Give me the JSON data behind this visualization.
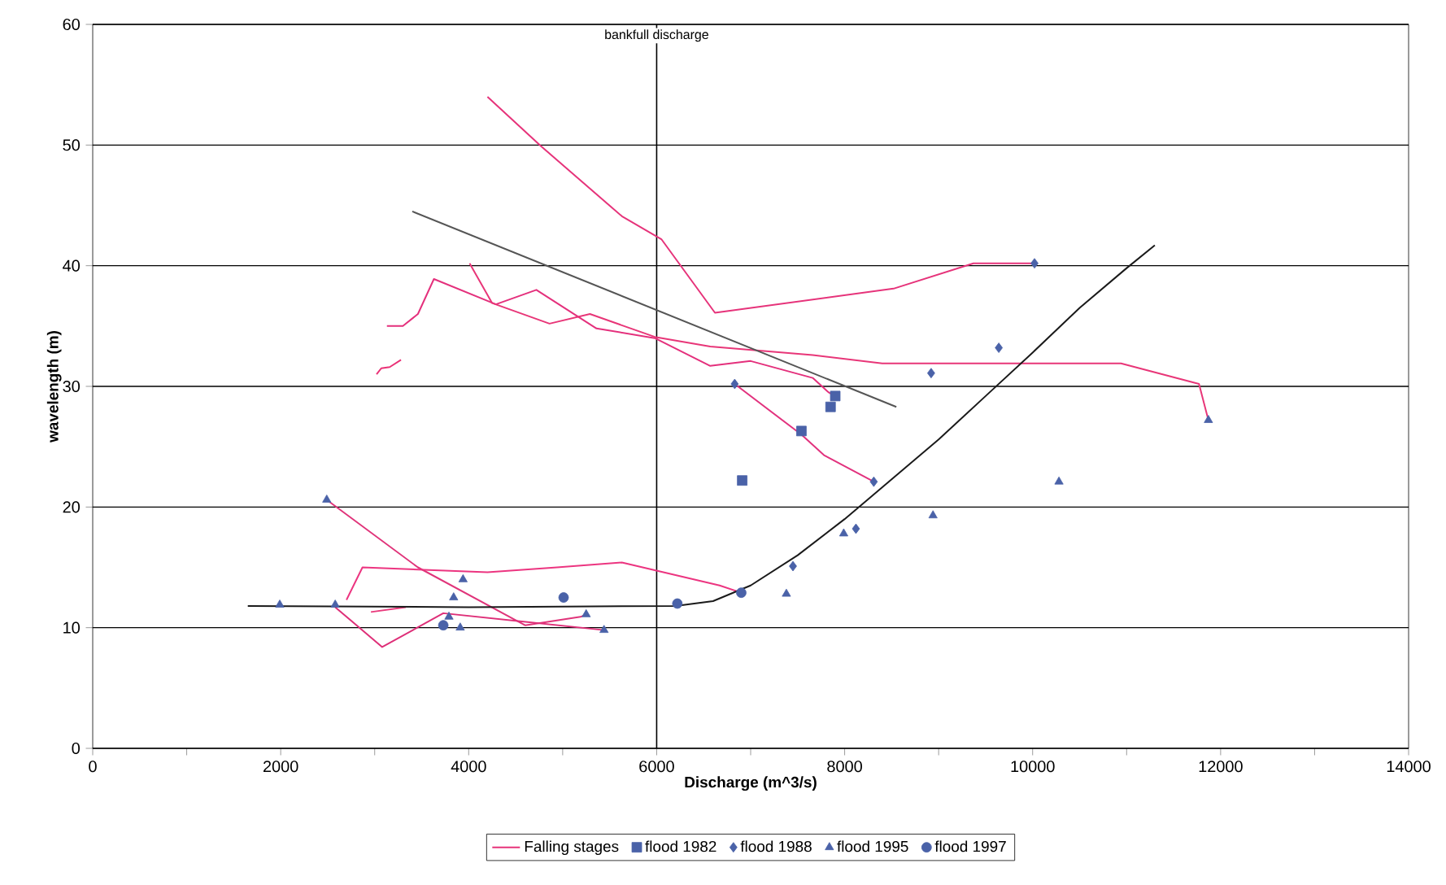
{
  "chart_data": {
    "type": "line",
    "xlabel": "Discharge (m^3/s)",
    "ylabel": "wavelength (m)",
    "xlim": [
      0,
      14000
    ],
    "ylim": [
      0,
      60
    ],
    "xticks": [
      0,
      {
        "value": 1000,
        "label": null
      },
      2000,
      {
        "value": 3000,
        "label": null
      },
      4000,
      {
        "value": 5000,
        "label": null
      },
      6000,
      {
        "value": 7000,
        "label": null
      },
      8000,
      {
        "value": 9000,
        "label": null
      },
      10000,
      {
        "value": 11000,
        "label": null
      },
      12000,
      {
        "value": 13000,
        "label": null
      },
      14000
    ],
    "yticks": [
      0,
      10,
      20,
      30,
      40,
      50,
      60
    ],
    "grid": "y",
    "legend": "bottom",
    "ref_lines": [
      {
        "axis": "x",
        "value": 6000,
        "label": "bankfull discharge",
        "color": "#000000"
      }
    ],
    "series": [
      {
        "name": "Falling stages",
        "color": "#e6337a",
        "x": [
          4200,
          4770,
          5630,
          6050,
          6620,
          8520,
          9370,
          10020
        ],
        "values": [
          54.0,
          49.9,
          44.1,
          42.2,
          36.1,
          38.1,
          40.2,
          40.2
        ]
      },
      {
        "color": "#e4307c",
        "x": [
          3130,
          3300,
          3460,
          3630,
          4290,
          4720,
          5360,
          5980,
          6570,
          7000,
          7660,
          7830,
          7900
        ],
        "values": [
          35.0,
          35.0,
          36.0,
          38.9,
          36.8,
          38.0,
          34.8,
          34.0,
          31.7,
          32.1,
          30.7,
          29.5,
          29.2
        ]
      },
      {
        "color": "#e83678",
        "x": [
          4010,
          4250,
          4860,
          5290,
          5980,
          6570,
          7660,
          8400,
          10940,
          11770,
          11870
        ],
        "values": [
          40.2,
          36.9,
          35.2,
          36.0,
          34.1,
          33.3,
          32.6,
          31.9,
          31.9,
          30.2,
          27.2
        ]
      },
      {
        "color": "#e2327e",
        "x": [
          6830,
          7540,
          7780,
          8310
        ],
        "values": [
          30.2,
          26.0,
          24.3,
          22.1
        ]
      },
      {
        "color": "#ea3176",
        "x": [
          3020,
          3070,
          3160,
          3280
        ],
        "values": [
          31.0,
          31.5,
          31.6,
          32.2
        ]
      },
      {
        "color": "#e0347a",
        "x": [
          2490,
          3460,
          4600,
          5190,
          5250
        ],
        "values": [
          20.6,
          15.0,
          10.2,
          10.9,
          11.1
        ]
      },
      {
        "color": "#ec3580",
        "x": [
          2700,
          2870,
          4200,
          4940,
          5630,
          6670,
          6900
        ],
        "values": [
          12.3,
          15.0,
          14.6,
          15.0,
          15.4,
          13.5,
          12.9
        ]
      },
      {
        "color": "#de2f78",
        "x": [
          2580,
          3080,
          3730,
          5440
        ],
        "values": [
          11.7,
          8.4,
          11.2,
          9.8
        ]
      },
      {
        "color": "#e93a7c",
        "x": [
          2960,
          3330
        ],
        "values": [
          11.3,
          11.7
        ]
      },
      {
        "color": "#1a1a1a",
        "x": [
          1650,
          4000,
          6200,
          6600,
          7000,
          7500,
          8000,
          8500,
          9000,
          9500,
          10000,
          10500,
          11000,
          11300
        ],
        "values": [
          11.8,
          11.7,
          11.8,
          12.2,
          13.5,
          16.0,
          19.0,
          22.3,
          25.6,
          29.2,
          32.8,
          36.5,
          39.8,
          41.7
        ]
      },
      {
        "color": "#555555",
        "x": [
          8550,
          3400
        ],
        "values": [
          28.3,
          44.5
        ]
      },
      {
        "name": "flood 1982",
        "type": "scatter",
        "marker": "square",
        "color": "#4a62a8",
        "x": [
          7900,
          7850,
          7540,
          6910
        ],
        "values": [
          29.2,
          28.3,
          26.3,
          22.2
        ]
      },
      {
        "name": "flood 1988",
        "type": "scatter",
        "marker": "diamond",
        "color": "#4a62a8",
        "x": [
          10020,
          9640,
          8920,
          6830,
          8310,
          8120,
          7450
        ],
        "values": [
          40.2,
          33.2,
          31.1,
          30.2,
          22.1,
          18.2,
          15.1
        ]
      },
      {
        "name": "flood 1995",
        "type": "scatter",
        "marker": "triangle",
        "color": "#4a62a8",
        "x": [
          11870,
          10280,
          8940,
          7990,
          7380,
          2490,
          1990,
          2580,
          3940,
          3840,
          3790,
          3910,
          5250,
          5440
        ],
        "values": [
          27.2,
          22.1,
          19.3,
          17.8,
          12.8,
          20.6,
          11.9,
          11.9,
          14.0,
          12.5,
          10.9,
          10.0,
          11.1,
          9.8
        ]
      },
      {
        "name": "flood 1997",
        "type": "scatter",
        "marker": "circle",
        "color": "#4a62a8",
        "x": [
          5010,
          6220,
          6900,
          3730
        ],
        "values": [
          12.5,
          12.0,
          12.9,
          10.2
        ]
      }
    ]
  }
}
